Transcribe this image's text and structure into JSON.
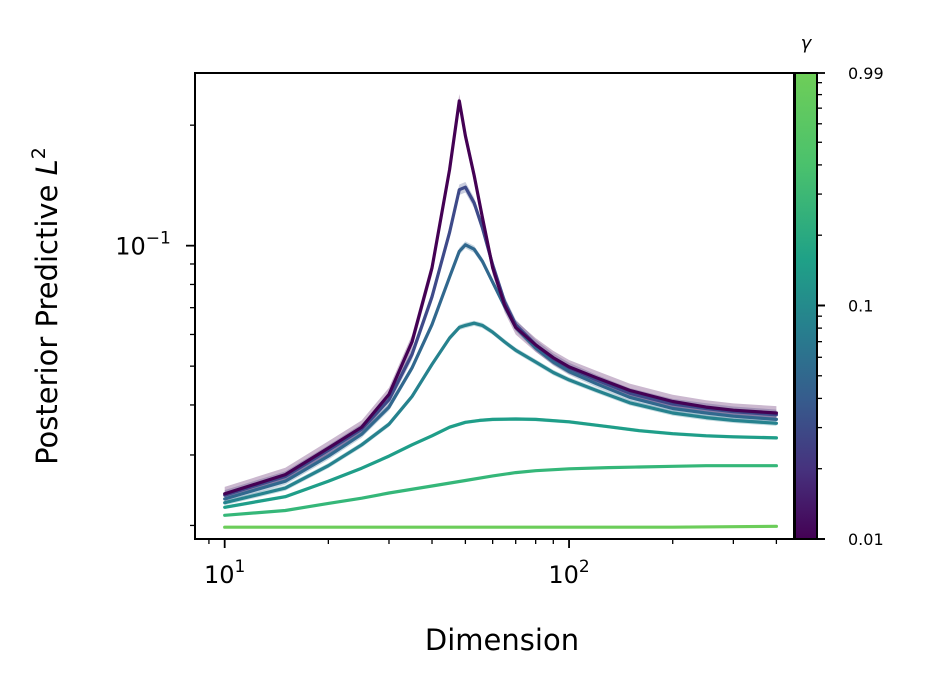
{
  "chart_data": {
    "type": "line",
    "xlabel": "Dimension",
    "ylabel": "Posterior Predictive L²",
    "xscale": "log",
    "yscale": "log",
    "xlim": [
      8.2,
      450
    ],
    "ylim": [
      0.0185,
      0.27
    ],
    "xticks": [
      {
        "value": 10,
        "base": "10",
        "exp": "1"
      },
      {
        "value": 100,
        "base": "10",
        "exp": "2"
      }
    ],
    "yticks": [
      {
        "value": 0.1,
        "base": "10",
        "exp": "−1"
      }
    ],
    "grid": false,
    "legend": "none",
    "colorbar": {
      "title": "γ",
      "scale": "log",
      "range": [
        0.01,
        0.99
      ],
      "ticks": [
        {
          "value": 0.01,
          "label": "0.01"
        },
        {
          "value": 0.1,
          "label": "0.1"
        },
        {
          "value": 0.99,
          "label": "0.99"
        }
      ],
      "colormap": "viridis"
    },
    "series": [
      {
        "gamma": 0.01,
        "color": "#440154",
        "x": [
          10,
          15,
          20,
          25,
          30,
          35,
          40,
          45,
          48,
          50,
          53,
          56,
          60,
          65,
          70,
          80,
          90,
          100,
          120,
          150,
          200,
          250,
          300,
          400
        ],
        "y": [
          0.024,
          0.0268,
          0.0312,
          0.0352,
          0.0425,
          0.0575,
          0.088,
          0.155,
          0.23,
          0.188,
          0.15,
          0.118,
          0.088,
          0.071,
          0.0625,
          0.0565,
          0.0525,
          0.0498,
          0.0468,
          0.0435,
          0.0408,
          0.0395,
          0.0388,
          0.0382
        ],
        "band": 0.04
      },
      {
        "gamma": 0.03,
        "color": "#3e4a89",
        "x": [
          10,
          15,
          20,
          25,
          30,
          35,
          40,
          45,
          48,
          50,
          53,
          56,
          60,
          65,
          70,
          80,
          90,
          100,
          120,
          150,
          200,
          250,
          300,
          400
        ],
        "y": [
          0.0238,
          0.0265,
          0.0308,
          0.0348,
          0.0412,
          0.0535,
          0.0745,
          0.108,
          0.138,
          0.14,
          0.128,
          0.111,
          0.0895,
          0.0725,
          0.0635,
          0.0565,
          0.0522,
          0.0495,
          0.0462,
          0.0428,
          0.0402,
          0.0392,
          0.0385,
          0.0378
        ],
        "band": 0.03
      },
      {
        "gamma": 0.06,
        "color": "#31688e",
        "x": [
          10,
          15,
          20,
          25,
          30,
          35,
          40,
          45,
          48,
          50,
          53,
          56,
          60,
          65,
          70,
          80,
          90,
          100,
          120,
          150,
          200,
          250,
          300,
          400
        ],
        "y": [
          0.0233,
          0.0258,
          0.0298,
          0.0338,
          0.0395,
          0.0495,
          0.0635,
          0.0835,
          0.0968,
          0.1005,
          0.098,
          0.0915,
          0.081,
          0.0705,
          0.0625,
          0.0555,
          0.0512,
          0.0485,
          0.0452,
          0.0418,
          0.0392,
          0.0382,
          0.0375,
          0.0368
        ],
        "band": 0.02
      },
      {
        "gamma": 0.15,
        "color": "#26828e",
        "x": [
          10,
          15,
          20,
          25,
          30,
          35,
          40,
          45,
          48,
          50,
          53,
          56,
          60,
          65,
          70,
          80,
          90,
          100,
          120,
          150,
          200,
          250,
          300,
          400
        ],
        "y": [
          0.0228,
          0.0248,
          0.0282,
          0.0318,
          0.0358,
          0.042,
          0.0505,
          0.0588,
          0.0625,
          0.0632,
          0.064,
          0.0632,
          0.0608,
          0.0575,
          0.0548,
          0.0512,
          0.0482,
          0.0462,
          0.0435,
          0.0405,
          0.0382,
          0.0372,
          0.0366,
          0.036
        ],
        "band": 0.015
      },
      {
        "gamma": 0.4,
        "color": "#1f9e89",
        "x": [
          10,
          15,
          20,
          25,
          30,
          35,
          40,
          45,
          50,
          55,
          60,
          70,
          80,
          100,
          130,
          160,
          200,
          250,
          300,
          400
        ],
        "y": [
          0.0222,
          0.0236,
          0.0258,
          0.0278,
          0.0298,
          0.0318,
          0.0335,
          0.0352,
          0.0362,
          0.0366,
          0.0368,
          0.0369,
          0.0368,
          0.0363,
          0.0353,
          0.0345,
          0.0339,
          0.0335,
          0.0333,
          0.0331
        ],
        "band": 0.01
      },
      {
        "gamma": 0.8,
        "color": "#35b779",
        "x": [
          10,
          15,
          20,
          25,
          30,
          40,
          50,
          60,
          70,
          80,
          100,
          130,
          160,
          200,
          250,
          300,
          400
        ],
        "y": [
          0.0212,
          0.0218,
          0.0227,
          0.0234,
          0.0241,
          0.0251,
          0.0259,
          0.0266,
          0.0271,
          0.0274,
          0.0277,
          0.0279,
          0.028,
          0.0281,
          0.0282,
          0.0282,
          0.0282
        ],
        "band": 0.006
      },
      {
        "gamma": 0.99,
        "color": "#6ccd5a",
        "x": [
          10,
          50,
          100,
          200,
          400
        ],
        "y": [
          0.0198,
          0.0198,
          0.0198,
          0.0198,
          0.0199
        ],
        "band": 0.0
      }
    ]
  }
}
